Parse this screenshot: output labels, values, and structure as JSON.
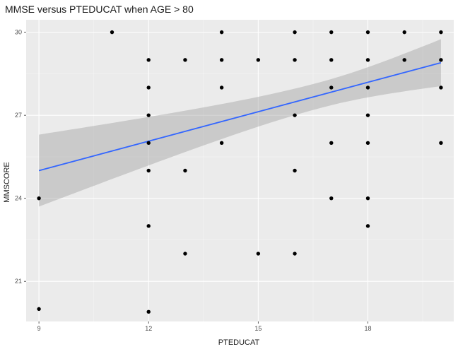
{
  "chart_data": {
    "type": "scatter",
    "title": "MMSE versus PTEDUCAT when AGE > 80",
    "xlabel": "PTEDUCAT",
    "ylabel": "MMSCORE",
    "xlim": [
      8.65,
      20.35
    ],
    "ylim": [
      19.55,
      30.45
    ],
    "x_ticks": [
      9,
      12,
      15,
      18
    ],
    "x_tick_labels": [
      "9",
      "12",
      "15",
      "18"
    ],
    "y_ticks": [
      21,
      24,
      27,
      30
    ],
    "y_tick_labels": [
      "21",
      "24",
      "27",
      "30"
    ],
    "grid": true,
    "points": [
      {
        "x": 9,
        "y": 24
      },
      {
        "x": 9,
        "y": 20
      },
      {
        "x": 11,
        "y": 30
      },
      {
        "x": 12,
        "y": 29
      },
      {
        "x": 12,
        "y": 28
      },
      {
        "x": 12,
        "y": 27
      },
      {
        "x": 12,
        "y": 26
      },
      {
        "x": 12,
        "y": 25
      },
      {
        "x": 12,
        "y": 23
      },
      {
        "x": 12,
        "y": 19.9
      },
      {
        "x": 13,
        "y": 29
      },
      {
        "x": 13,
        "y": 25
      },
      {
        "x": 13,
        "y": 22
      },
      {
        "x": 14,
        "y": 30
      },
      {
        "x": 14,
        "y": 29
      },
      {
        "x": 14,
        "y": 28
      },
      {
        "x": 14,
        "y": 26
      },
      {
        "x": 15,
        "y": 29
      },
      {
        "x": 15,
        "y": 22
      },
      {
        "x": 16,
        "y": 30
      },
      {
        "x": 16,
        "y": 29
      },
      {
        "x": 16,
        "y": 27
      },
      {
        "x": 16,
        "y": 25
      },
      {
        "x": 16,
        "y": 22
      },
      {
        "x": 17,
        "y": 30
      },
      {
        "x": 17,
        "y": 29
      },
      {
        "x": 17,
        "y": 28
      },
      {
        "x": 17,
        "y": 26
      },
      {
        "x": 17,
        "y": 24
      },
      {
        "x": 18,
        "y": 30
      },
      {
        "x": 18,
        "y": 29
      },
      {
        "x": 18,
        "y": 28
      },
      {
        "x": 18,
        "y": 27
      },
      {
        "x": 18,
        "y": 26
      },
      {
        "x": 18,
        "y": 24
      },
      {
        "x": 18,
        "y": 23
      },
      {
        "x": 19,
        "y": 30
      },
      {
        "x": 19,
        "y": 29
      },
      {
        "x": 20,
        "y": 30
      },
      {
        "x": 20,
        "y": 29
      },
      {
        "x": 20,
        "y": 28
      },
      {
        "x": 20,
        "y": 26
      }
    ],
    "trend_line": {
      "method": "linear",
      "x": [
        9,
        20
      ],
      "y": [
        25.0,
        28.9
      ],
      "ci_lower": [
        23.7,
        28.1
      ],
      "ci_upper": [
        26.3,
        29.8
      ],
      "color": "#3366ff",
      "band_color": "#999999"
    },
    "colors": {
      "panel": "#ebebeb",
      "grid_major": "#ffffff",
      "grid_minor": "#f5f5f5",
      "point": "#000000"
    }
  }
}
